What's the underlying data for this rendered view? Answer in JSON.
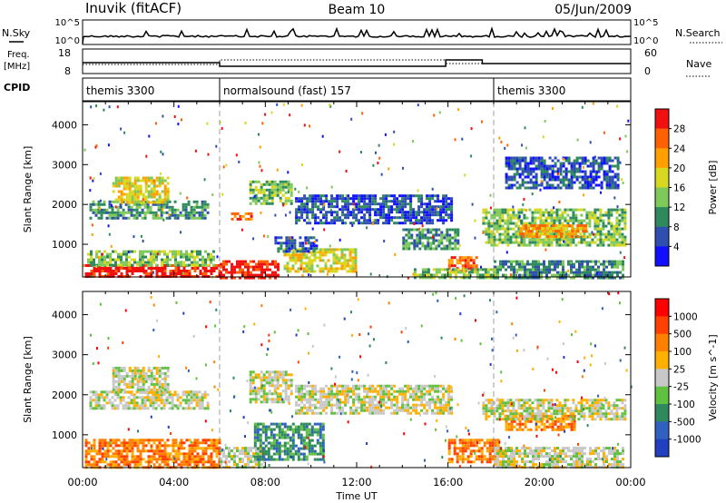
{
  "header": {
    "station": "Inuvik (fitACF)",
    "beam": "Beam 10",
    "date": "05/Jun/2009"
  },
  "panels": {
    "nsky": {
      "left_label": "N.Sky",
      "right_label": "N.Search",
      "tick_top": "10^5",
      "tick_bottom": "10^0"
    },
    "freq": {
      "left_label_1": "Freq.",
      "left_label_2": "[MHz]",
      "tick_top": "18",
      "tick_bottom": "8",
      "right_label": "Nave",
      "right_tick_top": "60",
      "right_tick_bottom": "0"
    },
    "cpid": {
      "label": "CPID",
      "segments": [
        {
          "name": "themis 3300",
          "start_hour": 0,
          "end_hour": 6
        },
        {
          "name": "normalsound (fast) 157",
          "start_hour": 6,
          "end_hour": 18
        },
        {
          "name": "themis 3300",
          "start_hour": 18,
          "end_hour": 24
        }
      ]
    }
  },
  "chart_data": [
    {
      "type": "heatmap",
      "name": "Power",
      "ylabel": "Slant Range [km]",
      "xlabel": "Time UT",
      "x_ticks": [
        "00:00",
        "04:00",
        "08:00",
        "12:00",
        "16:00",
        "20:00",
        "00:00"
      ],
      "x_range_hours": [
        0,
        24
      ],
      "y_ticks": [
        "1000",
        "2000",
        "3000",
        "4000"
      ],
      "ylim": [
        180,
        4580
      ],
      "colorbar": {
        "label": "Power [dB]",
        "ticks": [
          "4",
          "8",
          "12",
          "16",
          "20",
          "24",
          "28"
        ],
        "colors": [
          "#1010ff",
          "#2e4fb0",
          "#2e8a5c",
          "#7fc95a",
          "#d8d820",
          "#ffa000",
          "#ff6000",
          "#f01010"
        ]
      },
      "regions": [
        {
          "t0": 0.1,
          "t1": 6.0,
          "r0": 180,
          "r1": 500,
          "level": 7
        },
        {
          "t0": 6.0,
          "t1": 8.6,
          "r0": 180,
          "r1": 600,
          "level": 7
        },
        {
          "t0": 0.2,
          "t1": 5.8,
          "r0": 500,
          "r1": 850,
          "level": 3
        },
        {
          "t0": 8.8,
          "t1": 12.0,
          "r0": 350,
          "r1": 900,
          "level": 4
        },
        {
          "t0": 8.4,
          "t1": 10.2,
          "r0": 800,
          "r1": 1200,
          "level": 1
        },
        {
          "t0": 0.3,
          "t1": 5.5,
          "r0": 1650,
          "r1": 2100,
          "level": 2
        },
        {
          "t0": 1.3,
          "t1": 3.8,
          "r0": 2050,
          "r1": 2700,
          "level": 4
        },
        {
          "t0": 7.3,
          "t1": 9.2,
          "r0": 2000,
          "r1": 2600,
          "level": 3
        },
        {
          "t0": 6.5,
          "t1": 7.4,
          "r0": 1600,
          "r1": 1800,
          "level": 6
        },
        {
          "t0": 9.3,
          "t1": 16.2,
          "r0": 1550,
          "r1": 2250,
          "level": 1
        },
        {
          "t0": 14.0,
          "t1": 16.5,
          "r0": 900,
          "r1": 1400,
          "level": 2
        },
        {
          "t0": 16.0,
          "t1": 17.3,
          "r0": 300,
          "r1": 700,
          "level": 6
        },
        {
          "t0": 17.5,
          "t1": 23.7,
          "r0": 1000,
          "r1": 1900,
          "level": 3
        },
        {
          "t0": 19.0,
          "t1": 22.0,
          "r0": 1200,
          "r1": 1500,
          "level": 5
        },
        {
          "t0": 18.0,
          "t1": 23.7,
          "r0": 180,
          "r1": 600,
          "level": 2
        },
        {
          "t0": 14.5,
          "t1": 18.0,
          "r0": 180,
          "r1": 400,
          "level": 3
        },
        {
          "t0": 18.5,
          "t1": 23.5,
          "r0": 2400,
          "r1": 3200,
          "level": 1
        }
      ]
    },
    {
      "type": "heatmap",
      "name": "Velocity",
      "ylabel": "Slant Range [km]",
      "xlabel": "Time UT",
      "x_ticks": [
        "00:00",
        "04:00",
        "08:00",
        "12:00",
        "16:00",
        "20:00",
        "00:00"
      ],
      "x_range_hours": [
        0,
        24
      ],
      "y_ticks": [
        "1000",
        "2000",
        "3000",
        "4000"
      ],
      "ylim": [
        180,
        4580
      ],
      "colorbar": {
        "label": "Velocity [m s^-1]",
        "ticks": [
          "1000",
          "500",
          "100",
          "25",
          "-25",
          "-100",
          "-500",
          "-1000"
        ],
        "colors": [
          "#2040c0",
          "#3060c0",
          "#2e8a5c",
          "#60c040",
          "#c8c8c8",
          "#ffb000",
          "#ff8000",
          "#ff4000",
          "#ff0000"
        ]
      },
      "regions": [
        {
          "t0": 0.1,
          "t1": 6.0,
          "r0": 180,
          "r1": 900,
          "level": 6
        },
        {
          "t0": 6.0,
          "t1": 8.0,
          "r0": 180,
          "r1": 700,
          "level": 4
        },
        {
          "t0": 7.5,
          "t1": 10.5,
          "r0": 350,
          "r1": 1300,
          "level": 2
        },
        {
          "t0": 0.3,
          "t1": 5.5,
          "r0": 1650,
          "r1": 2100,
          "level": 4
        },
        {
          "t0": 1.3,
          "t1": 3.8,
          "r0": 2050,
          "r1": 2700,
          "level": 4
        },
        {
          "t0": 7.3,
          "t1": 9.2,
          "r0": 1800,
          "r1": 2600,
          "level": 4
        },
        {
          "t0": 9.3,
          "t1": 16.2,
          "r0": 1550,
          "r1": 2250,
          "level": 4
        },
        {
          "t0": 16.0,
          "t1": 18.2,
          "r0": 300,
          "r1": 900,
          "level": 6
        },
        {
          "t0": 18.5,
          "t1": 21.5,
          "r0": 1100,
          "r1": 1500,
          "level": 6
        },
        {
          "t0": 17.5,
          "t1": 23.7,
          "r0": 1400,
          "r1": 1900,
          "level": 4
        },
        {
          "t0": 18.0,
          "t1": 23.7,
          "r0": 180,
          "r1": 700,
          "level": 4
        }
      ]
    }
  ]
}
